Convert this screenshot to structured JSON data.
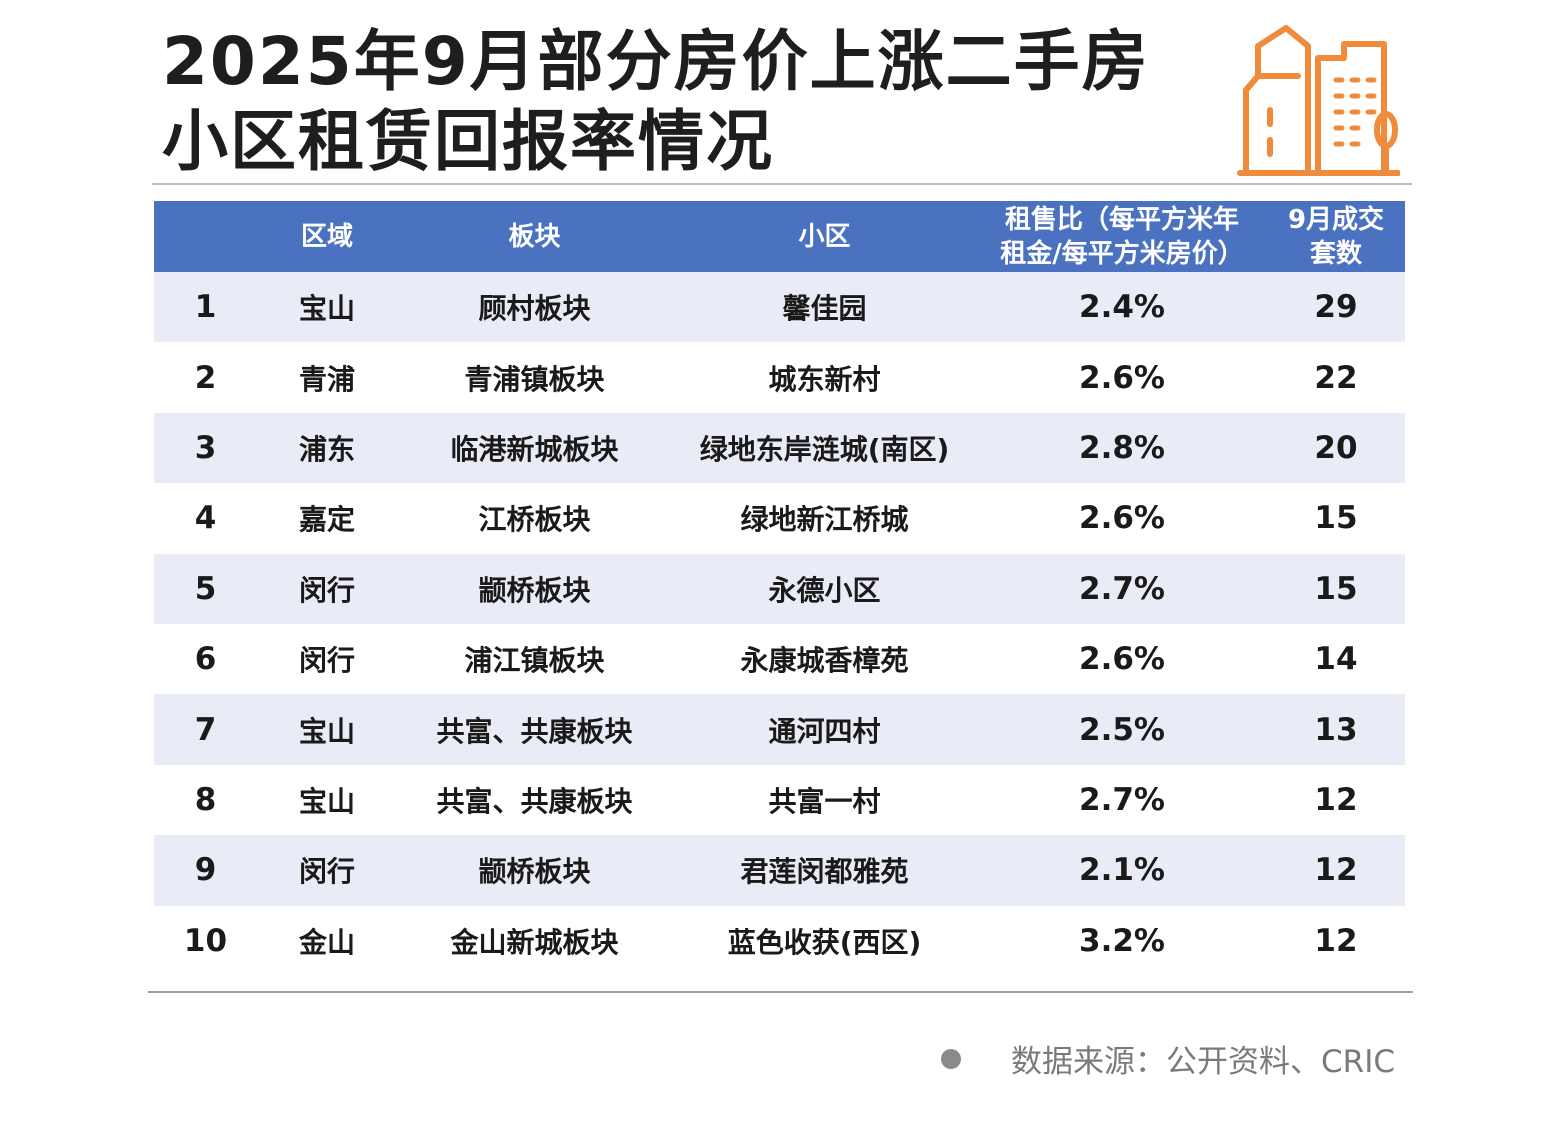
{
  "title": {
    "line1": "2025年9月部分房价上涨二手房",
    "line2": "小区租赁回报率情况"
  },
  "icon": "building-icon",
  "colors": {
    "header_bg": "#4a72c0",
    "stripe_bg": "#e9ebf6",
    "icon_color": "#f08b3c"
  },
  "table": {
    "headers": {
      "rank": "",
      "district": "区域",
      "sector": "板块",
      "community": "小区",
      "ratio_line1": "租售比（每平方米年",
      "ratio_line2": "租金/每平方米房价）",
      "deals_line1": "9月成交",
      "deals_line2": "套数"
    },
    "rows": [
      {
        "rank": "1",
        "district": "宝山",
        "sector": "顾村板块",
        "community": "馨佳园",
        "ratio": "2.4%",
        "deals": "29"
      },
      {
        "rank": "2",
        "district": "青浦",
        "sector": "青浦镇板块",
        "community": "城东新村",
        "ratio": "2.6%",
        "deals": "22"
      },
      {
        "rank": "3",
        "district": "浦东",
        "sector": "临港新城板块",
        "community": "绿地东岸涟城(南区)",
        "ratio": "2.8%",
        "deals": "20"
      },
      {
        "rank": "4",
        "district": "嘉定",
        "sector": "江桥板块",
        "community": "绿地新江桥城",
        "ratio": "2.6%",
        "deals": "15"
      },
      {
        "rank": "5",
        "district": "闵行",
        "sector": "颛桥板块",
        "community": "永德小区",
        "ratio": "2.7%",
        "deals": "15"
      },
      {
        "rank": "6",
        "district": "闵行",
        "sector": "浦江镇板块",
        "community": "永康城香樟苑",
        "ratio": "2.6%",
        "deals": "14"
      },
      {
        "rank": "7",
        "district": "宝山",
        "sector": "共富、共康板块",
        "community": "通河四村",
        "ratio": "2.5%",
        "deals": "13"
      },
      {
        "rank": "8",
        "district": "宝山",
        "sector": "共富、共康板块",
        "community": "共富一村",
        "ratio": "2.7%",
        "deals": "12"
      },
      {
        "rank": "9",
        "district": "闵行",
        "sector": "颛桥板块",
        "community": "君莲闵都雅苑",
        "ratio": "2.1%",
        "deals": "12"
      },
      {
        "rank": "10",
        "district": "金山",
        "sector": "金山新城板块",
        "community": "蓝色收获(西区)",
        "ratio": "3.2%",
        "deals": "12"
      }
    ]
  },
  "source": "数据来源：公开资料、CRIC"
}
